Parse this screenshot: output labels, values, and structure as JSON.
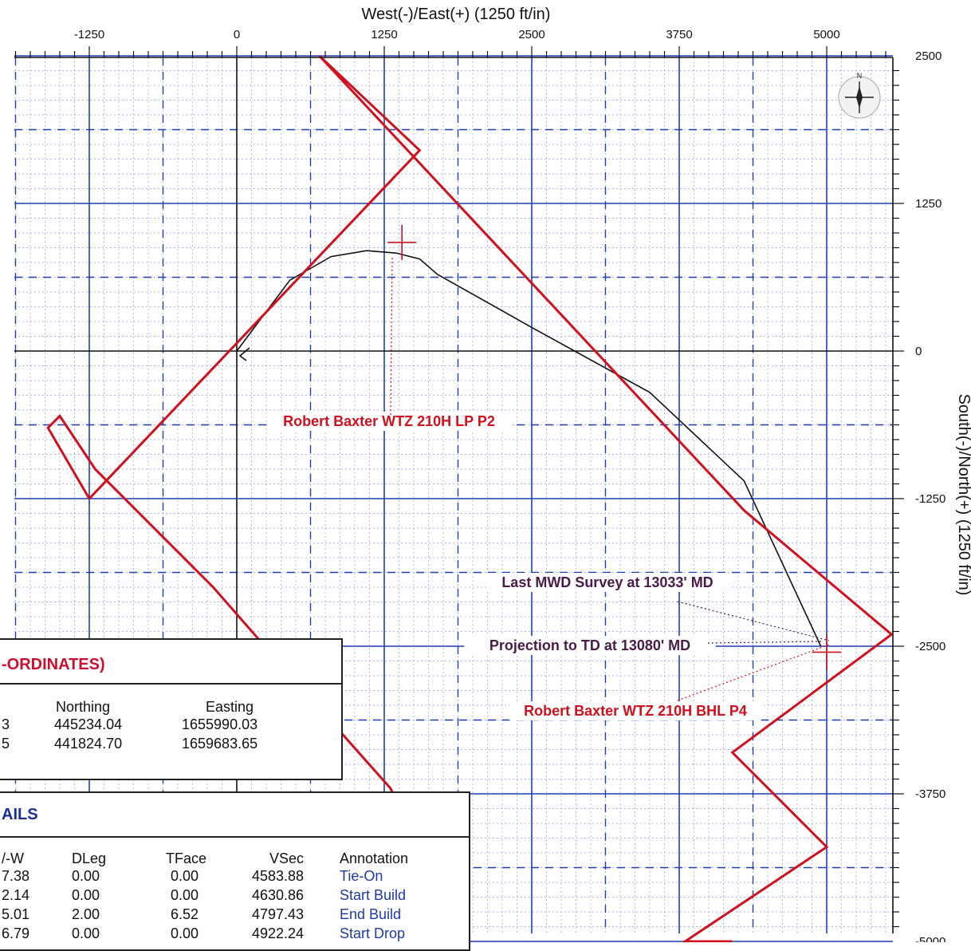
{
  "chart_data": {
    "type": "line",
    "title": "",
    "xlabel": "West(-)/East(+) (1250 ft/in)",
    "ylabel": "South(-)/North(+) (1250 ft/in)",
    "xlim": [
      -1250,
      5000
    ],
    "ylim": [
      -5000,
      2500
    ],
    "x_ticks": [
      "-1250",
      "0",
      "1250",
      "2500",
      "3750",
      "5000"
    ],
    "y_ticks": [
      "2500",
      "1250",
      "0",
      "-1250",
      "-2500",
      "-3750",
      "-5000"
    ],
    "grid": true,
    "series": [
      {
        "kind": "wellpath",
        "color": "#111111",
        "x": [
          0,
          150,
          450,
          800,
          1100,
          1350,
          1550,
          1700,
          2500,
          3500,
          4300,
          4950
        ],
        "y": [
          0,
          200,
          600,
          800,
          850,
          830,
          780,
          650,
          200,
          -350,
          -1100,
          -2500
        ]
      },
      {
        "kind": "lease-line",
        "color": "#d0101c",
        "x": [
          -1250,
          -1600,
          -1500,
          -1200,
          -200,
          500,
          1300,
          1700
        ],
        "y": [
          -1250,
          -650,
          -550,
          -1000,
          -2000,
          -2800,
          -3700,
          -4500
        ]
      },
      {
        "kind": "lease-line",
        "color": "#d0101c",
        "x": [
          -1250,
          1550,
          700,
          4300,
          5550,
          4200,
          5000,
          3800,
          4200
        ],
        "y": [
          -1250,
          1700,
          2500,
          -1350,
          -2400,
          -3400,
          -4200,
          -5000,
          -5000
        ]
      }
    ],
    "annotations": [
      {
        "text": "Robert Baxter WTZ 210H LP P2",
        "color": "#d0101c"
      },
      {
        "text": "Last MWD Survey at 13033' MD",
        "color": "#4a1a4a"
      },
      {
        "text": "Projection to TD at 13080' MD",
        "color": "#4a1a4a"
      },
      {
        "text": "Robert Baxter WTZ 210H BHL P4",
        "color": "#d0101c"
      }
    ],
    "targets": [
      {
        "name": "LP P2",
        "x": 1400,
        "y": 920
      },
      {
        "name": "BHL P4",
        "x": 5000,
        "y": -2550
      }
    ]
  },
  "coords_box": {
    "title_fragment": "-ORDINATES)",
    "headers": {
      "northing": "Northing",
      "easting": "Easting"
    },
    "rows": [
      {
        "lead": "3",
        "northing": "445234.04",
        "easting": "1655990.03"
      },
      {
        "lead": "5",
        "northing": "441824.70",
        "easting": "1659683.65"
      }
    ]
  },
  "details_box": {
    "title_fragment": "AILS",
    "headers": {
      "ew": "/-W",
      "dleg": "DLeg",
      "tface": "TFace",
      "vsec": "VSec",
      "annotation": "Annotation"
    },
    "rows": [
      {
        "ew": "7.38",
        "dleg": "0.00",
        "tface": "0.00",
        "vsec": "4583.88",
        "annotation": "Tie-On"
      },
      {
        "ew": "2.14",
        "dleg": "0.00",
        "tface": "0.00",
        "vsec": "4630.86",
        "annotation": "Start Build"
      },
      {
        "ew": "5.01",
        "dleg": "2.00",
        "tface": "6.52",
        "vsec": "4797.43",
        "annotation": "End Build"
      },
      {
        "ew": "6.79",
        "dleg": "0.00",
        "tface": "0.00",
        "vsec": "4922.24",
        "annotation": "Start Drop"
      }
    ]
  },
  "compass": {
    "icon": "compass-rose-icon",
    "north_label": "N"
  },
  "colors": {
    "grid_major": "#1f3fb5",
    "grid_minor": "#8fa0d8",
    "lease": "#d0101c",
    "path": "#111111",
    "axis_zero": "#111111"
  }
}
